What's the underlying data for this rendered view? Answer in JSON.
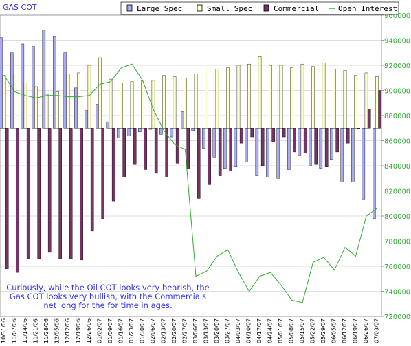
{
  "chart_data": {
    "type": "bar",
    "title": "GAS COT",
    "legend_position": "top-right",
    "legend": {
      "large_spec": "Large Spec",
      "small_spec": "Small Spec",
      "commercial": "Commercial",
      "open_interest": "Open Interest"
    },
    "annotation_lines": [
      "Curiously, while the Oil COT looks very bearish, the",
      "Gas COT looks very bullish, with the Commercials",
      "net long for the for time in ages."
    ],
    "grid": true,
    "right_axis": {
      "min": 720000,
      "max": 960000,
      "ticks": [
        "960000",
        "940000",
        "920000",
        "900000",
        "880000",
        "860000",
        "840000",
        "820000",
        "800000",
        "780000",
        "760000",
        "740000",
        "720000"
      ]
    },
    "categories": [
      "10/31/06",
      "11/07/06",
      "11/14/06",
      "11/21/06",
      "11/28/06",
      "12/05/06",
      "12/12/06",
      "12/19/06",
      "12/26/06",
      "01/02/07",
      "01/09/07",
      "01/16/07",
      "01/23/07",
      "01/30/07",
      "02/06/07",
      "02/13/07",
      "02/20/07",
      "02/27/07",
      "03/06/07",
      "03/13/07",
      "03/20/07",
      "03/27/07",
      "04/03/07",
      "04/10/07",
      "04/17/07",
      "04/24/07",
      "05/01/07",
      "05/08/07",
      "05/15/07",
      "05/22/07",
      "05/29/07",
      "06/05/07",
      "06/12/07",
      "06/19/07",
      "06/26/07",
      "07/03/07"
    ],
    "x_tick_labels": [
      "10/31/06",
      "11/07/06",
      "11/14/06",
      "11/21/06",
      "11/28/06",
      "12/05/06",
      "12/12/06",
      "12/19/06",
      "12/26/06",
      "01/02/07",
      "01/09/07",
      "01/16/07",
      "01/23/07",
      "01/30/07",
      "02/06/07",
      "02/13/07",
      "02/20/07",
      "02/27/07",
      "03/06/07",
      "03/13/07",
      "03/20/07",
      "03/27/07",
      "04/03/07",
      "04/10/07",
      "04/17/07",
      "04/24/07",
      "05/01/07",
      "05/08/07",
      "05/15/07",
      "05/22/07",
      "05/29/07",
      "06/05/07",
      "06/12/07",
      "06/19/07",
      "06/26/07",
      "07/03/07"
    ],
    "series": [
      {
        "name": "Large Spec",
        "color": "#aaaaee",
        "values": [
          942,
          930,
          937,
          935,
          948,
          943,
          930,
          902,
          884,
          889,
          875,
          862,
          864,
          867,
          869,
          865,
          863,
          883,
          868,
          854,
          847,
          838,
          839,
          843,
          832,
          831,
          830,
          837,
          848,
          840,
          838,
          845,
          827,
          827,
          813,
          798
        ]
      },
      {
        "name": "Small Spec",
        "color": "#ffffcc",
        "values": [
          912,
          913,
          906,
          903,
          897,
          899,
          913,
          914,
          920,
          926,
          909,
          906,
          907,
          908,
          908,
          912,
          911,
          910,
          913,
          917,
          917,
          918,
          920,
          921,
          927,
          920,
          920,
          918,
          921,
          919,
          922,
          917,
          916,
          912,
          914,
          911
        ]
      },
      {
        "name": "Commercial",
        "color": "#773366",
        "values": [
          758,
          755,
          766,
          766,
          771,
          766,
          766,
          765,
          788,
          798,
          812,
          831,
          841,
          837,
          834,
          831,
          842,
          838,
          814,
          825,
          832,
          836,
          858,
          863,
          840,
          859,
          863,
          851,
          850,
          841,
          839,
          851,
          858,
          870,
          885,
          900
        ]
      },
      {
        "name": "Open Interest",
        "color": "#33aa33",
        "values": [
          912,
          899,
          896,
          894,
          896,
          896,
          895,
          895,
          896,
          905,
          907,
          918,
          921,
          908,
          885,
          868,
          857,
          853,
          752,
          756,
          768,
          773,
          755,
          740,
          752,
          755,
          745,
          733,
          731,
          763,
          767,
          757,
          775,
          768,
          800,
          806
        ]
      }
    ]
  }
}
